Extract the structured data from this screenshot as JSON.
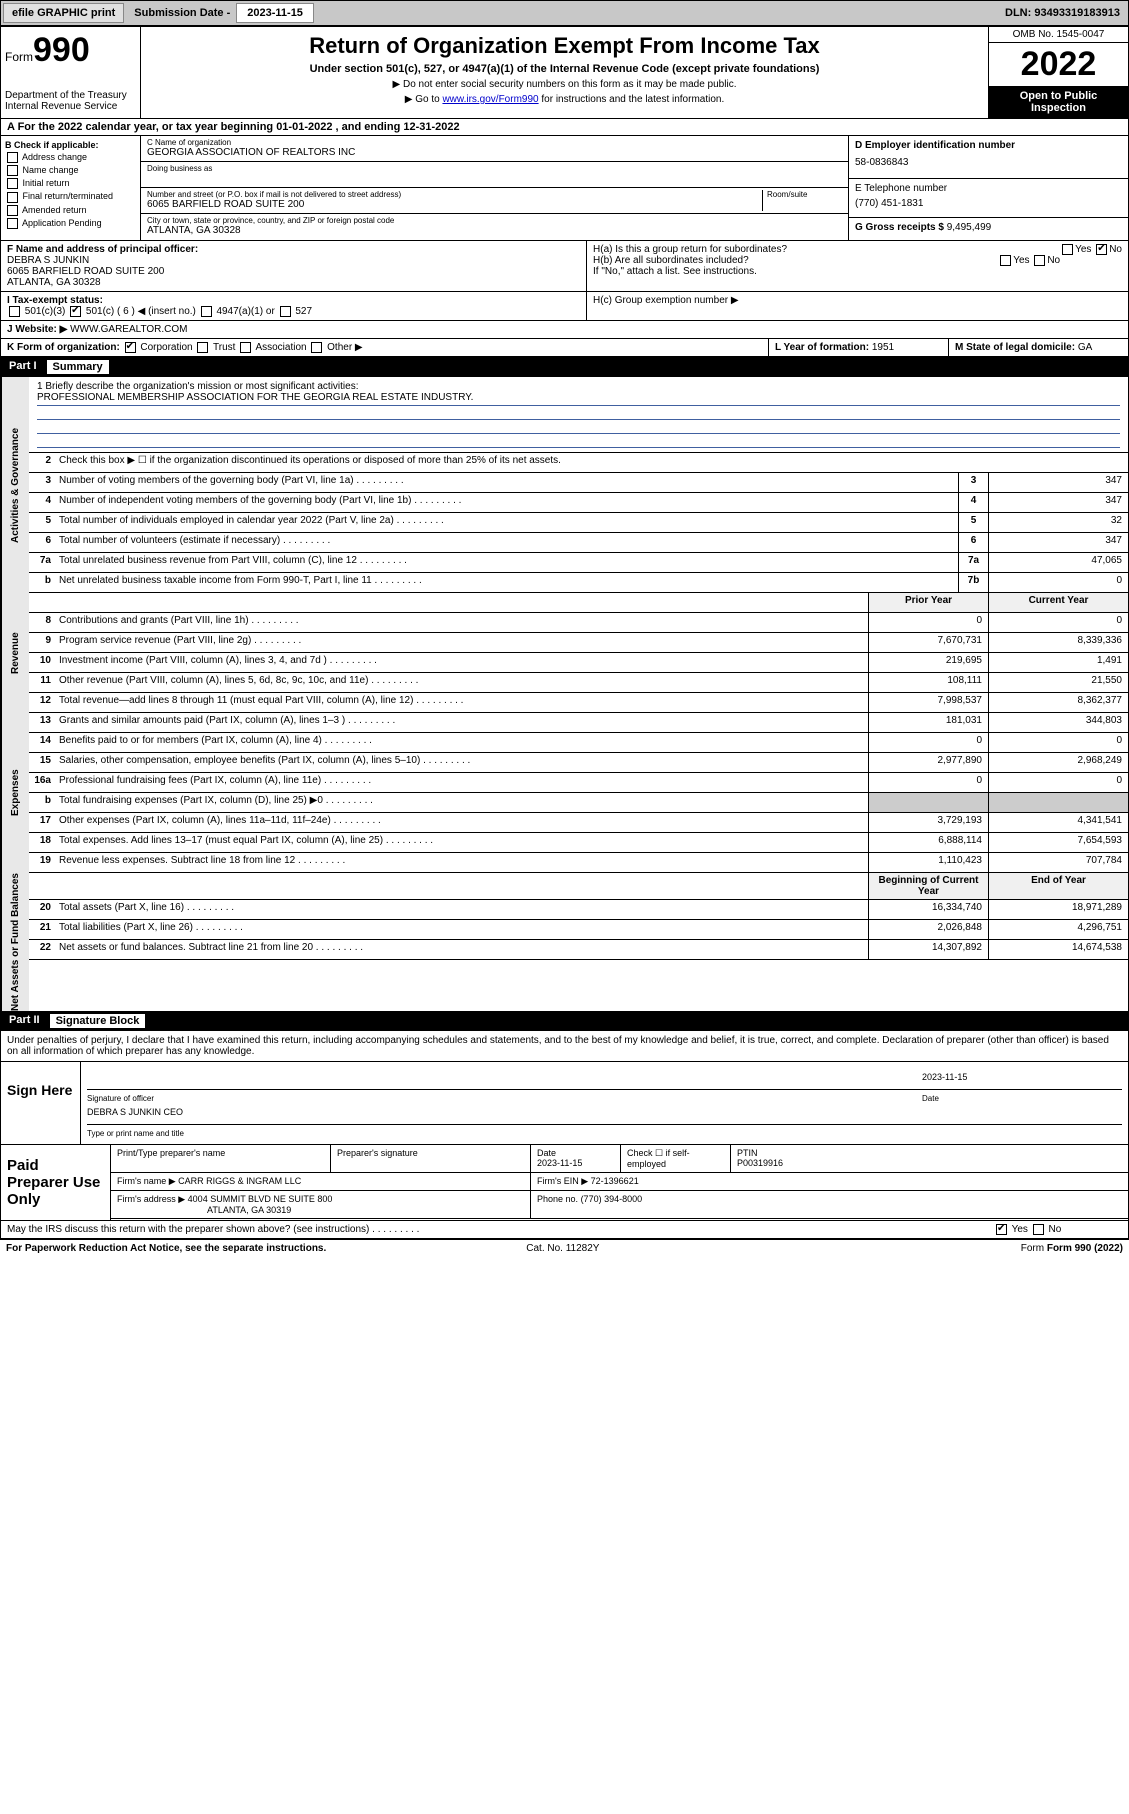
{
  "topbar": {
    "efile": "efile GRAPHIC print",
    "sub_label": "Submission Date - ",
    "sub_date": "2023-11-15",
    "dln": "DLN: 93493319183913"
  },
  "header": {
    "form_word": "Form",
    "form_num": "990",
    "dept": "Department of the Treasury\nInternal Revenue Service",
    "title": "Return of Organization Exempt From Income Tax",
    "subtitle": "Under section 501(c), 527, or 4947(a)(1) of the Internal Revenue Code (except private foundations)",
    "note1": "▶ Do not enter social security numbers on this form as it may be made public.",
    "note2_pre": "▶ Go to ",
    "note2_link": "www.irs.gov/Form990",
    "note2_post": " for instructions and the latest information.",
    "omb": "OMB No. 1545-0047",
    "year": "2022",
    "inspect": "Open to Public Inspection"
  },
  "row_a": "A For the 2022 calendar year, or tax year beginning 01-01-2022   , and ending 12-31-2022",
  "box_b": {
    "title": "B Check if applicable:",
    "opts": [
      "Address change",
      "Name change",
      "Initial return",
      "Final return/terminated",
      "Amended return",
      "Application Pending"
    ]
  },
  "box_c": {
    "name_lbl": "C Name of organization",
    "name": "GEORGIA ASSOCIATION OF REALTORS INC",
    "dba_lbl": "Doing business as",
    "dba": "",
    "addr_lbl": "Number and street (or P.O. box if mail is not delivered to street address)",
    "room_lbl": "Room/suite",
    "addr": "6065 BARFIELD ROAD SUITE 200",
    "city_lbl": "City or town, state or province, country, and ZIP or foreign postal code",
    "city": "ATLANTA, GA  30328"
  },
  "box_d": {
    "lbl": "D Employer identification number",
    "val": "58-0836843"
  },
  "box_e": {
    "lbl": "E Telephone number",
    "val": "(770) 451-1831"
  },
  "box_g": {
    "lbl": "G Gross receipts $",
    "val": "9,495,499"
  },
  "box_f": {
    "lbl": "F Name and address of principal officer:",
    "name": "DEBRA S JUNKIN",
    "addr1": "6065 BARFIELD ROAD SUITE 200",
    "addr2": "ATLANTA, GA  30328"
  },
  "box_h": {
    "ha": "H(a)  Is this a group return for subordinates?",
    "hb": "H(b)  Are all subordinates included?",
    "hb_note": "If \"No,\" attach a list. See instructions.",
    "hc": "H(c)  Group exemption number ▶"
  },
  "row_i": {
    "lbl": "I    Tax-exempt status:",
    "o1": "501(c)(3)",
    "o2": "501(c) ( 6 ) ◀ (insert no.)",
    "o3": "4947(a)(1) or",
    "o4": "527"
  },
  "row_j": {
    "lbl": "J    Website: ▶",
    "val": "WWW.GAREALTOR.COM"
  },
  "row_k": {
    "lbl": "K Form of organization:",
    "o1": "Corporation",
    "o2": "Trust",
    "o3": "Association",
    "o4": "Other ▶"
  },
  "row_l": {
    "lbl": "L Year of formation:",
    "val": "1951"
  },
  "row_m": {
    "lbl": "M State of legal domicile:",
    "val": "GA"
  },
  "part1": {
    "num": "Part I",
    "title": "Summary"
  },
  "mission": {
    "lbl": "1   Briefly describe the organization's mission or most significant activities:",
    "text": "PROFESSIONAL MEMBERSHIP ASSOCIATION FOR THE GEORGIA REAL ESTATE INDUSTRY."
  },
  "line2": "Check this box ▶ ☐  if the organization discontinued its operations or disposed of more than 25% of its net assets.",
  "sections": {
    "gov": "Activities & Governance",
    "rev": "Revenue",
    "exp": "Expenses",
    "net": "Net Assets or Fund Balances"
  },
  "govrows": [
    {
      "n": "3",
      "d": "Number of voting members of the governing body (Part VI, line 1a)",
      "b": "3",
      "v": "347"
    },
    {
      "n": "4",
      "d": "Number of independent voting members of the governing body (Part VI, line 1b)",
      "b": "4",
      "v": "347"
    },
    {
      "n": "5",
      "d": "Total number of individuals employed in calendar year 2022 (Part V, line 2a)",
      "b": "5",
      "v": "32"
    },
    {
      "n": "6",
      "d": "Total number of volunteers (estimate if necessary)",
      "b": "6",
      "v": "347"
    },
    {
      "n": "7a",
      "d": "Total unrelated business revenue from Part VIII, column (C), line 12",
      "b": "7a",
      "v": "47,065"
    },
    {
      "n": "b",
      "d": "Net unrelated business taxable income from Form 990-T, Part I, line 11",
      "b": "7b",
      "v": "0"
    }
  ],
  "colheaders": {
    "py": "Prior Year",
    "cy": "Current Year"
  },
  "revrows": [
    {
      "n": "8",
      "d": "Contributions and grants (Part VIII, line 1h)",
      "p": "0",
      "c": "0"
    },
    {
      "n": "9",
      "d": "Program service revenue (Part VIII, line 2g)",
      "p": "7,670,731",
      "c": "8,339,336"
    },
    {
      "n": "10",
      "d": "Investment income (Part VIII, column (A), lines 3, 4, and 7d )",
      "p": "219,695",
      "c": "1,491"
    },
    {
      "n": "11",
      "d": "Other revenue (Part VIII, column (A), lines 5, 6d, 8c, 9c, 10c, and 11e)",
      "p": "108,111",
      "c": "21,550"
    },
    {
      "n": "12",
      "d": "Total revenue—add lines 8 through 11 (must equal Part VIII, column (A), line 12)",
      "p": "7,998,537",
      "c": "8,362,377"
    }
  ],
  "exprows": [
    {
      "n": "13",
      "d": "Grants and similar amounts paid (Part IX, column (A), lines 1–3 )",
      "p": "181,031",
      "c": "344,803"
    },
    {
      "n": "14",
      "d": "Benefits paid to or for members (Part IX, column (A), line 4)",
      "p": "0",
      "c": "0"
    },
    {
      "n": "15",
      "d": "Salaries, other compensation, employee benefits (Part IX, column (A), lines 5–10)",
      "p": "2,977,890",
      "c": "2,968,249"
    },
    {
      "n": "16a",
      "d": "Professional fundraising fees (Part IX, column (A), line 11e)",
      "p": "0",
      "c": "0"
    },
    {
      "n": "b",
      "d": "Total fundraising expenses (Part IX, column (D), line 25) ▶0",
      "p": "",
      "c": ""
    },
    {
      "n": "17",
      "d": "Other expenses (Part IX, column (A), lines 11a–11d, 11f–24e)",
      "p": "3,729,193",
      "c": "4,341,541"
    },
    {
      "n": "18",
      "d": "Total expenses. Add lines 13–17 (must equal Part IX, column (A), line 25)",
      "p": "6,888,114",
      "c": "7,654,593"
    },
    {
      "n": "19",
      "d": "Revenue less expenses. Subtract line 18 from line 12",
      "p": "1,110,423",
      "c": "707,784"
    }
  ],
  "netheaders": {
    "b": "Beginning of Current Year",
    "e": "End of Year"
  },
  "netrows": [
    {
      "n": "20",
      "d": "Total assets (Part X, line 16)",
      "p": "16,334,740",
      "c": "18,971,289"
    },
    {
      "n": "21",
      "d": "Total liabilities (Part X, line 26)",
      "p": "2,026,848",
      "c": "4,296,751"
    },
    {
      "n": "22",
      "d": "Net assets or fund balances. Subtract line 21 from line 20",
      "p": "14,307,892",
      "c": "14,674,538"
    }
  ],
  "part2": {
    "num": "Part II",
    "title": "Signature Block"
  },
  "decl": "Under penalties of perjury, I declare that I have examined this return, including accompanying schedules and statements, and to the best of my knowledge and belief, it is true, correct, and complete. Declaration of preparer (other than officer) is based on all information of which preparer has any knowledge.",
  "sign": {
    "here": "Sign Here",
    "sig_lbl": "Signature of officer",
    "date_lbl": "Date",
    "date": "2023-11-15",
    "name": "DEBRA S JUNKIN  CEO",
    "name_lbl": "Type or print name and title"
  },
  "prep": {
    "title": "Paid Preparer Use Only",
    "h1": "Print/Type preparer's name",
    "h2": "Preparer's signature",
    "h3": "Date",
    "h3v": "2023-11-15",
    "h4": "Check ☐ if self-employed",
    "h5": "PTIN",
    "h5v": "P00319916",
    "firm_lbl": "Firm's name    ▶",
    "firm": "CARR RIGGS & INGRAM LLC",
    "ein_lbl": "Firm's EIN ▶",
    "ein": "72-1396621",
    "addr_lbl": "Firm's address ▶",
    "addr": "4004 SUMMIT BLVD NE SUITE 800",
    "addr2": "ATLANTA, GA  30319",
    "phone_lbl": "Phone no.",
    "phone": "(770) 394-8000"
  },
  "discuss": "May the IRS discuss this return with the preparer shown above? (see instructions)",
  "footer": {
    "l": "For Paperwork Reduction Act Notice, see the separate instructions.",
    "m": "Cat. No. 11282Y",
    "r": "Form 990 (2022)"
  }
}
